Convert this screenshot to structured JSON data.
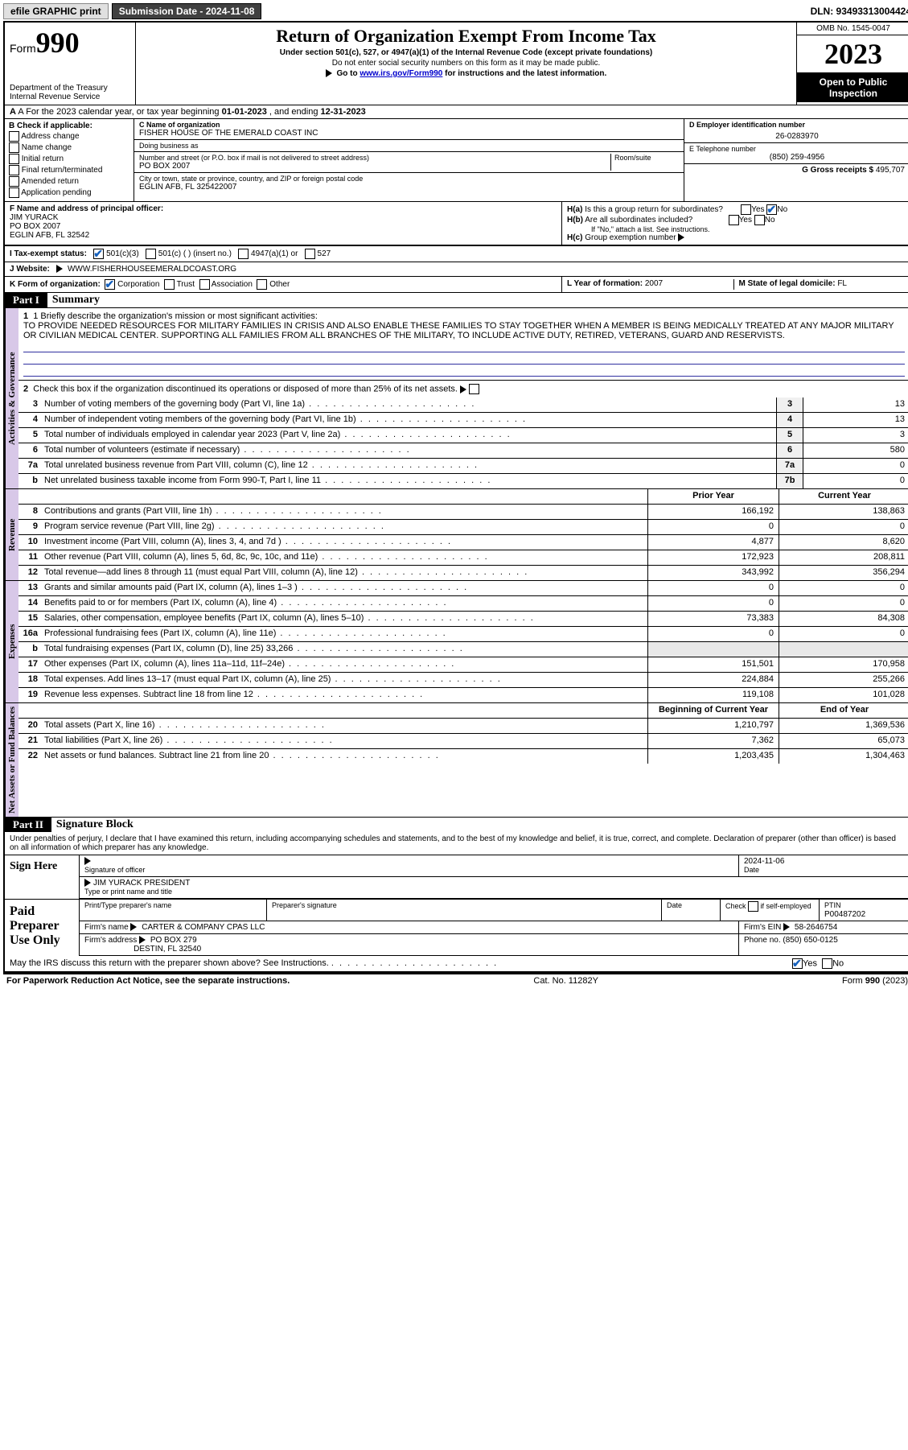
{
  "topbar": {
    "efile": "efile GRAPHIC print",
    "submission_label": "Submission Date - 2024-11-08",
    "dln": "DLN: 93493313004424"
  },
  "header": {
    "form_word": "Form",
    "form_num": "990",
    "dept": "Department of the Treasury\nInternal Revenue Service",
    "title": "Return of Organization Exempt From Income Tax",
    "sub1": "Under section 501(c), 527, or 4947(a)(1) of the Internal Revenue Code (except private foundations)",
    "sub2": "Do not enter social security numbers on this form as it may be made public.",
    "sub3_pre": "Go to ",
    "sub3_link": "www.irs.gov/Form990",
    "sub3_post": " for instructions and the latest information.",
    "omb": "OMB No. 1545-0047",
    "year": "2023",
    "badge": "Open to Public Inspection"
  },
  "row_a": {
    "text_pre": "A For the 2023 calendar year, or tax year beginning ",
    "begin": "01-01-2023",
    "mid": " , and ending ",
    "end": "12-31-2023"
  },
  "box_b": {
    "title": "B Check if applicable:",
    "items": [
      "Address change",
      "Name change",
      "Initial return",
      "Final return/terminated",
      "Amended return",
      "Application pending"
    ]
  },
  "box_c": {
    "name_label": "C Name of organization",
    "name": "FISHER HOUSE OF THE EMERALD COAST INC",
    "dba_label": "Doing business as",
    "dba": "",
    "addr_label": "Number and street (or P.O. box if mail is not delivered to street address)",
    "room_label": "Room/suite",
    "addr": "PO BOX 2007",
    "city_label": "City or town, state or province, country, and ZIP or foreign postal code",
    "city": "EGLIN AFB, FL  325422007"
  },
  "box_d": {
    "label": "D Employer identification number",
    "value": "26-0283970"
  },
  "box_e": {
    "label": "E Telephone number",
    "value": "(850) 259-4956"
  },
  "box_g": {
    "label": "G Gross receipts $",
    "value": "495,707"
  },
  "box_f": {
    "label": "F Name and address of principal officer:",
    "name": "JIM YURACK",
    "addr1": "PO BOX 2007",
    "addr2": "EGLIN AFB, FL  32542"
  },
  "box_h": {
    "a": "H(a) Is this a group return for subordinates?",
    "a_yes": "Yes",
    "a_no": "No",
    "b": "H(b) Are all subordinates included?",
    "b_yes": "Yes",
    "b_no": "No",
    "b_note": "If \"No,\" attach a list. See instructions.",
    "c": "H(c) Group exemption number"
  },
  "row_i": {
    "label": "I    Tax-exempt status:",
    "opts": [
      "501(c)(3)",
      "501(c) (  ) (insert no.)",
      "4947(a)(1) or",
      "527"
    ]
  },
  "row_j": {
    "label": "J    Website:",
    "value": "WWW.FISHERHOUSEEMERALDCOAST.ORG"
  },
  "row_k": {
    "label": "K Form of organization:",
    "opts": [
      "Corporation",
      "Trust",
      "Association",
      "Other"
    ]
  },
  "row_l": {
    "label": "L Year of formation:",
    "value": "2007"
  },
  "row_m": {
    "label": "M State of legal domicile:",
    "value": "FL"
  },
  "part1": {
    "label": "Part I",
    "title": "Summary"
  },
  "side_labels": {
    "gov": "Activities & Governance",
    "rev": "Revenue",
    "exp": "Expenses",
    "net": "Net Assets or Fund Balances"
  },
  "summary": {
    "q1_label": "1  Briefly describe the organization's mission or most significant activities:",
    "q1_text": "TO PROVIDE NEEDED RESOURCES FOR MILITARY FAMILIES IN CRISIS AND ALSO ENABLE THESE FAMILIES TO STAY TOGETHER WHEN A MEMBER IS BEING MEDICALLY TREATED AT ANY MAJOR MILITARY OR CIVILIAN MEDICAL CENTER. SUPPORTING ALL FAMILIES FROM ALL BRANCHES OF THE MILITARY, TO INCLUDE ACTIVE DUTY, RETIRED, VETERANS, GUARD AND RESERVISTS.",
    "q2": "Check this box     if the organization discontinued its operations or disposed of more than 25% of its net assets.",
    "lines_gov": [
      {
        "n": "3",
        "d": "Number of voting members of the governing body (Part VI, line 1a)",
        "box": "3",
        "v": "13"
      },
      {
        "n": "4",
        "d": "Number of independent voting members of the governing body (Part VI, line 1b)",
        "box": "4",
        "v": "13"
      },
      {
        "n": "5",
        "d": "Total number of individuals employed in calendar year 2023 (Part V, line 2a)",
        "box": "5",
        "v": "3"
      },
      {
        "n": "6",
        "d": "Total number of volunteers (estimate if necessary)",
        "box": "6",
        "v": "580"
      },
      {
        "n": "7a",
        "d": "Total unrelated business revenue from Part VIII, column (C), line 12",
        "box": "7a",
        "v": "0"
      },
      {
        "n": "b",
        "d": "Net unrelated business taxable income from Form 990-T, Part I, line 11",
        "box": "7b",
        "v": "0"
      }
    ],
    "col_py": "Prior Year",
    "col_cy": "Current Year",
    "lines_rev": [
      {
        "n": "8",
        "d": "Contributions and grants (Part VIII, line 1h)",
        "py": "166,192",
        "cy": "138,863"
      },
      {
        "n": "9",
        "d": "Program service revenue (Part VIII, line 2g)",
        "py": "0",
        "cy": "0"
      },
      {
        "n": "10",
        "d": "Investment income (Part VIII, column (A), lines 3, 4, and 7d )",
        "py": "4,877",
        "cy": "8,620"
      },
      {
        "n": "11",
        "d": "Other revenue (Part VIII, column (A), lines 5, 6d, 8c, 9c, 10c, and 11e)",
        "py": "172,923",
        "cy": "208,811"
      },
      {
        "n": "12",
        "d": "Total revenue—add lines 8 through 11 (must equal Part VIII, column (A), line 12)",
        "py": "343,992",
        "cy": "356,294"
      }
    ],
    "lines_exp": [
      {
        "n": "13",
        "d": "Grants and similar amounts paid (Part IX, column (A), lines 1–3 )",
        "py": "0",
        "cy": "0"
      },
      {
        "n": "14",
        "d": "Benefits paid to or for members (Part IX, column (A), line 4)",
        "py": "0",
        "cy": "0"
      },
      {
        "n": "15",
        "d": "Salaries, other compensation, employee benefits (Part IX, column (A), lines 5–10)",
        "py": "73,383",
        "cy": "84,308"
      },
      {
        "n": "16a",
        "d": "Professional fundraising fees (Part IX, column (A), line 11e)",
        "py": "0",
        "cy": "0"
      },
      {
        "n": "b",
        "d": "Total fundraising expenses (Part IX, column (D), line 25) 33,266",
        "py": "",
        "cy": "",
        "shade": true
      },
      {
        "n": "17",
        "d": "Other expenses (Part IX, column (A), lines 11a–11d, 11f–24e)",
        "py": "151,501",
        "cy": "170,958"
      },
      {
        "n": "18",
        "d": "Total expenses. Add lines 13–17 (must equal Part IX, column (A), line 25)",
        "py": "224,884",
        "cy": "255,266"
      },
      {
        "n": "19",
        "d": "Revenue less expenses. Subtract line 18 from line 12",
        "py": "119,108",
        "cy": "101,028"
      }
    ],
    "col_boy": "Beginning of Current Year",
    "col_eoy": "End of Year",
    "lines_net": [
      {
        "n": "20",
        "d": "Total assets (Part X, line 16)",
        "py": "1,210,797",
        "cy": "1,369,536"
      },
      {
        "n": "21",
        "d": "Total liabilities (Part X, line 26)",
        "py": "7,362",
        "cy": "65,073"
      },
      {
        "n": "22",
        "d": "Net assets or fund balances. Subtract line 21 from line 20",
        "py": "1,203,435",
        "cy": "1,304,463"
      }
    ]
  },
  "part2": {
    "label": "Part II",
    "title": "Signature Block"
  },
  "perjury": "Under penalties of perjury, I declare that I have examined this return, including accompanying schedules and statements, and to the best of my knowledge and belief, it is true, correct, and complete. Declaration of preparer (other than officer) is based on all information of which preparer has any knowledge.",
  "sign": {
    "left": "Sign Here",
    "sig_label": "Signature of officer",
    "date_label": "Date",
    "date": "2024-11-06",
    "name": "JIM YURACK PRESIDENT",
    "name_label": "Type or print name and title"
  },
  "preparer": {
    "left": "Paid Preparer Use Only",
    "h1": "Print/Type preparer's name",
    "h2": "Preparer's signature",
    "h3": "Date",
    "h4_pre": "Check",
    "h4_post": "if self-employed",
    "h5": "PTIN",
    "ptin": "P00487202",
    "firm_name_label": "Firm's name",
    "firm_name": "CARTER & COMPANY CPAS LLC",
    "firm_ein_label": "Firm's EIN",
    "firm_ein": "58-2646754",
    "firm_addr_label": "Firm's address",
    "firm_addr1": "PO BOX 279",
    "firm_addr2": "DESTIN, FL  32540",
    "phone_label": "Phone no.",
    "phone": "(850) 650-0125"
  },
  "discuss": {
    "text": "May the IRS discuss this return with the preparer shown above? See Instructions.",
    "yes": "Yes",
    "no": "No"
  },
  "footer": {
    "left": "For Paperwork Reduction Act Notice, see the separate instructions.",
    "mid": "Cat. No. 11282Y",
    "right_pre": "Form ",
    "right_num": "990",
    "right_post": " (2023)"
  }
}
